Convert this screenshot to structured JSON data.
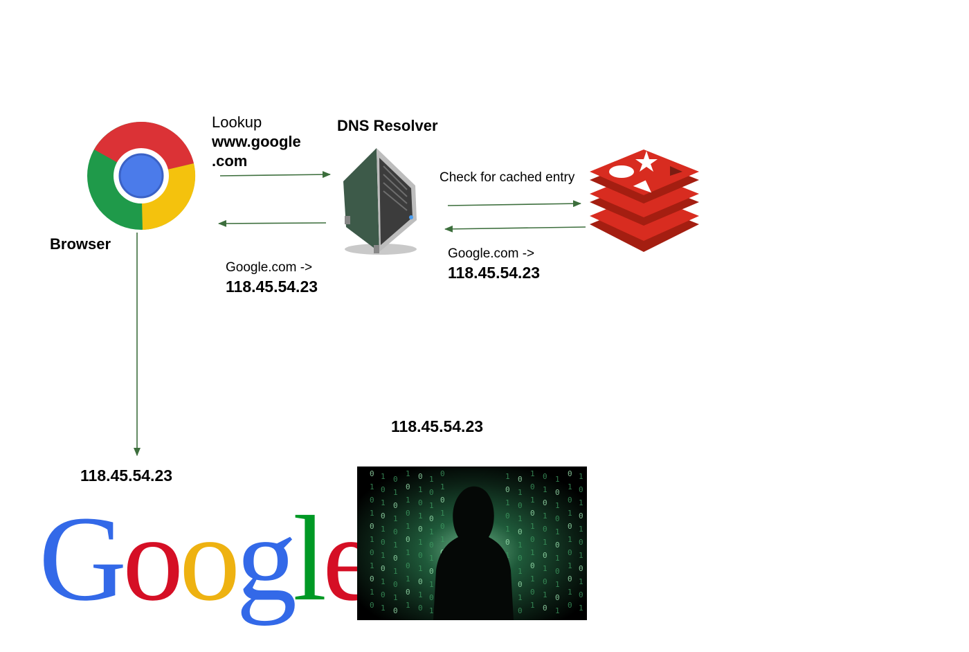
{
  "browser": {
    "label": "Browser",
    "icon": "chrome-logo-icon"
  },
  "lookup": {
    "line1": "Lookup",
    "line2": "www.google",
    "line3": ".com"
  },
  "dns": {
    "title": "DNS Resolver",
    "icon": "server-icon"
  },
  "cache": {
    "label": "Check for cached entry",
    "icon": "redis-logo-icon",
    "color": "#d82c20"
  },
  "resolver_response": {
    "mapping": "Google.com ->",
    "ip": "118.45.54.23"
  },
  "cache_response": {
    "mapping": "Google.com ->",
    "ip": "118.45.54.23"
  },
  "destination_ip": "118.45.54.23",
  "attacker_ip": "118.45.54.23",
  "google_logo": {
    "letters": [
      "G",
      "o",
      "o",
      "g",
      "l",
      "e"
    ],
    "colors": [
      "#3369e8",
      "#d50f25",
      "#eeb211",
      "#3369e8",
      "#009925",
      "#d50f25"
    ]
  },
  "attacker_image": {
    "icon": "hooded-hacker-icon"
  },
  "arrow_color": "#3c6e3c"
}
